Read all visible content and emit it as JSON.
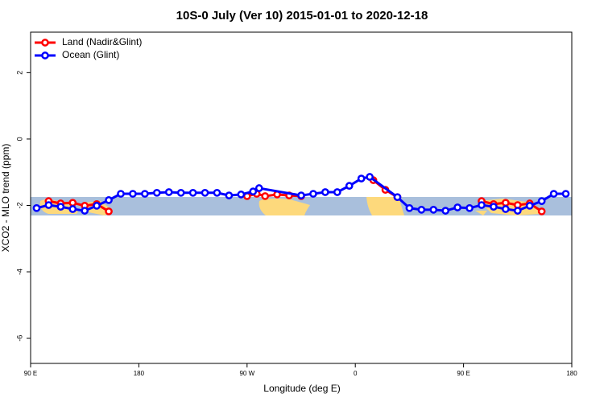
{
  "chart_data": {
    "type": "line",
    "title": "10S-0 July (Ver 10)   2015-01-01 to 2020-12-18",
    "xlabel": "Longitude (deg E)",
    "ylabel": "XCO2 - MLO trend (ppm)",
    "xlim": [
      90,
      540
    ],
    "ylim": [
      -6.76,
      3.22
    ],
    "xticks": [
      {
        "value": 90,
        "label": "90 E"
      },
      {
        "value": 180,
        "label": "180"
      },
      {
        "value": 270,
        "label": "90 W"
      },
      {
        "value": 360,
        "label": "0"
      },
      {
        "value": 450,
        "label": "90 E"
      },
      {
        "value": 540,
        "label": "180"
      }
    ],
    "yticks": [
      2,
      0,
      -2,
      -4,
      -6
    ],
    "legend": "top-left",
    "series": [
      {
        "name": "Land (Nadir&Glint)",
        "color": "#ff0000",
        "x": [
          105,
          115,
          125,
          135,
          145,
          155,
          165,
          270,
          278,
          285,
          295,
          305,
          315,
          345,
          375,
          385,
          395,
          430,
          465,
          475,
          485,
          495,
          505,
          515
        ],
        "values": [
          -1.87,
          -1.94,
          -1.92,
          -2.01,
          -1.96,
          -2.18,
          null,
          -1.72,
          -1.65,
          -1.72,
          -1.67,
          -1.7,
          -1.72,
          null,
          -1.24,
          -1.53,
          -1.75,
          null,
          -1.87,
          -1.96,
          -1.92,
          -1.99,
          -1.94,
          -2.18
        ]
      },
      {
        "name": "Ocean (Glint)",
        "color": "#0000ff",
        "x": [
          95,
          105,
          115,
          125,
          135,
          145,
          155,
          165,
          175,
          185,
          195,
          205,
          215,
          225,
          235,
          245,
          255,
          265,
          275,
          280,
          315,
          325,
          335,
          345,
          355,
          365,
          372,
          395,
          405,
          415,
          425,
          435,
          445,
          455,
          465,
          475,
          485,
          495,
          505,
          515,
          525,
          535
        ],
        "values": [
          -2.08,
          -1.99,
          -2.04,
          -2.11,
          -2.16,
          -2.01,
          -1.84,
          -1.65,
          -1.65,
          -1.65,
          -1.62,
          -1.6,
          -1.62,
          -1.62,
          -1.62,
          -1.62,
          -1.7,
          -1.67,
          -1.58,
          -1.48,
          -1.7,
          -1.65,
          -1.6,
          -1.6,
          -1.41,
          -1.19,
          -1.14,
          -1.75,
          -2.08,
          -2.13,
          -2.13,
          -2.16,
          -2.06,
          -2.08,
          -1.99,
          -2.04,
          -2.11,
          -2.16,
          -2.01,
          -1.87,
          -1.65,
          -1.65
        ]
      }
    ]
  }
}
